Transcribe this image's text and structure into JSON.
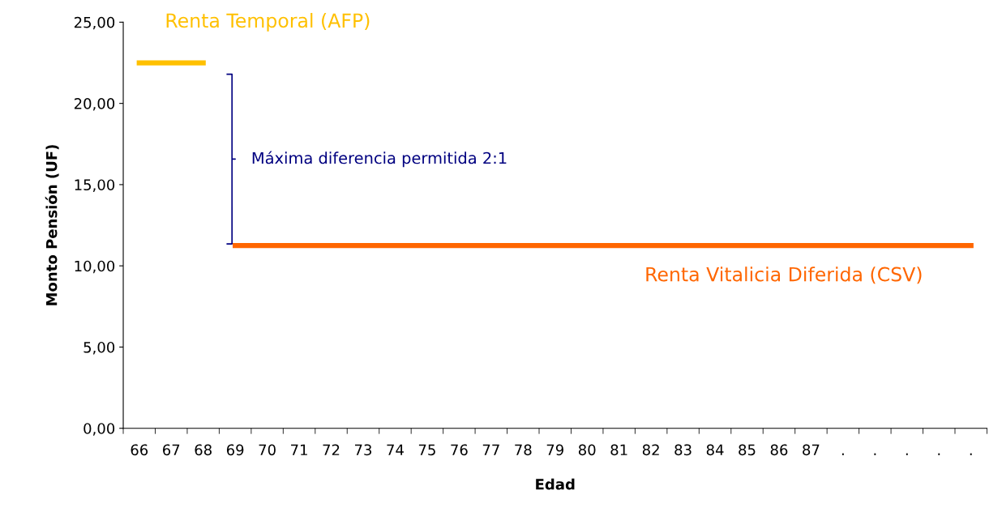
{
  "chart_data": {
    "type": "line",
    "xlabel": "Edad",
    "ylabel": "Monto Pensión (UF)",
    "categories": [
      "66",
      "67",
      "68",
      "69",
      "70",
      "71",
      "72",
      "73",
      "74",
      "75",
      "76",
      "77",
      "78",
      "79",
      "80",
      "81",
      "82",
      "83",
      "84",
      "85",
      "86",
      "87",
      ".",
      ".",
      ".",
      ".",
      "."
    ],
    "series": [
      {
        "name": "Renta Temporal (AFP)",
        "color": "#ffc000",
        "values": [
          22.5,
          22.5,
          22.5,
          null,
          null,
          null,
          null,
          null,
          null,
          null,
          null,
          null,
          null,
          null,
          null,
          null,
          null,
          null,
          null,
          null,
          null,
          null,
          null,
          null,
          null,
          null,
          null
        ]
      },
      {
        "name": "Renta Vitalicia Diferida (CSV)",
        "color": "#ff6600",
        "values": [
          null,
          null,
          null,
          11.25,
          11.25,
          11.25,
          11.25,
          11.25,
          11.25,
          11.25,
          11.25,
          11.25,
          11.25,
          11.25,
          11.25,
          11.25,
          11.25,
          11.25,
          11.25,
          11.25,
          11.25,
          11.25,
          11.25,
          11.25,
          11.25,
          11.25,
          11.25
        ]
      }
    ],
    "ylim": [
      0,
      25
    ],
    "yticks": [
      {
        "value": 0,
        "label": "0,00"
      },
      {
        "value": 5,
        "label": "5,00"
      },
      {
        "value": 10,
        "label": "10,00"
      },
      {
        "value": 15,
        "label": "15,00"
      },
      {
        "value": 20,
        "label": "20,00"
      },
      {
        "value": 25,
        "label": "25,00"
      }
    ],
    "annotations": [
      "Máxima diferencia permitida 2:1"
    ],
    "grid": false,
    "legend": false,
    "marker": "none",
    "line_style": "solid"
  }
}
